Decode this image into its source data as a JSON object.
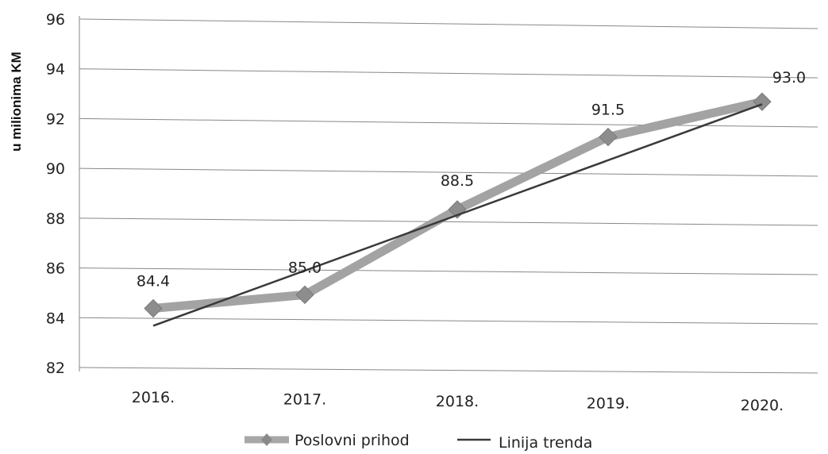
{
  "chart_data": {
    "type": "line",
    "categories": [
      "2016.",
      "2017.",
      "2018.",
      "2019.",
      "2020."
    ],
    "series": [
      {
        "name": "Poslovni prihod",
        "values": [
          84.4,
          85.0,
          88.5,
          91.5,
          93.0
        ],
        "labels": [
          "84.4",
          "85.0",
          "88.5",
          "91.5",
          "93.0"
        ],
        "color": "#9a9a9a",
        "marker": "diamond"
      },
      {
        "name": "Linija trenda",
        "values": [
          83.7,
          86.1,
          88.4,
          90.6,
          92.9
        ],
        "color": "#3a3a3a",
        "style": "trend-line"
      }
    ],
    "ylabel": "u milionima KM",
    "xlabel": "",
    "ylim": [
      82,
      96
    ],
    "yticks": [
      "82",
      "84",
      "86",
      "88",
      "90",
      "92",
      "94",
      "96"
    ],
    "grid": true,
    "legend_position": "bottom"
  }
}
